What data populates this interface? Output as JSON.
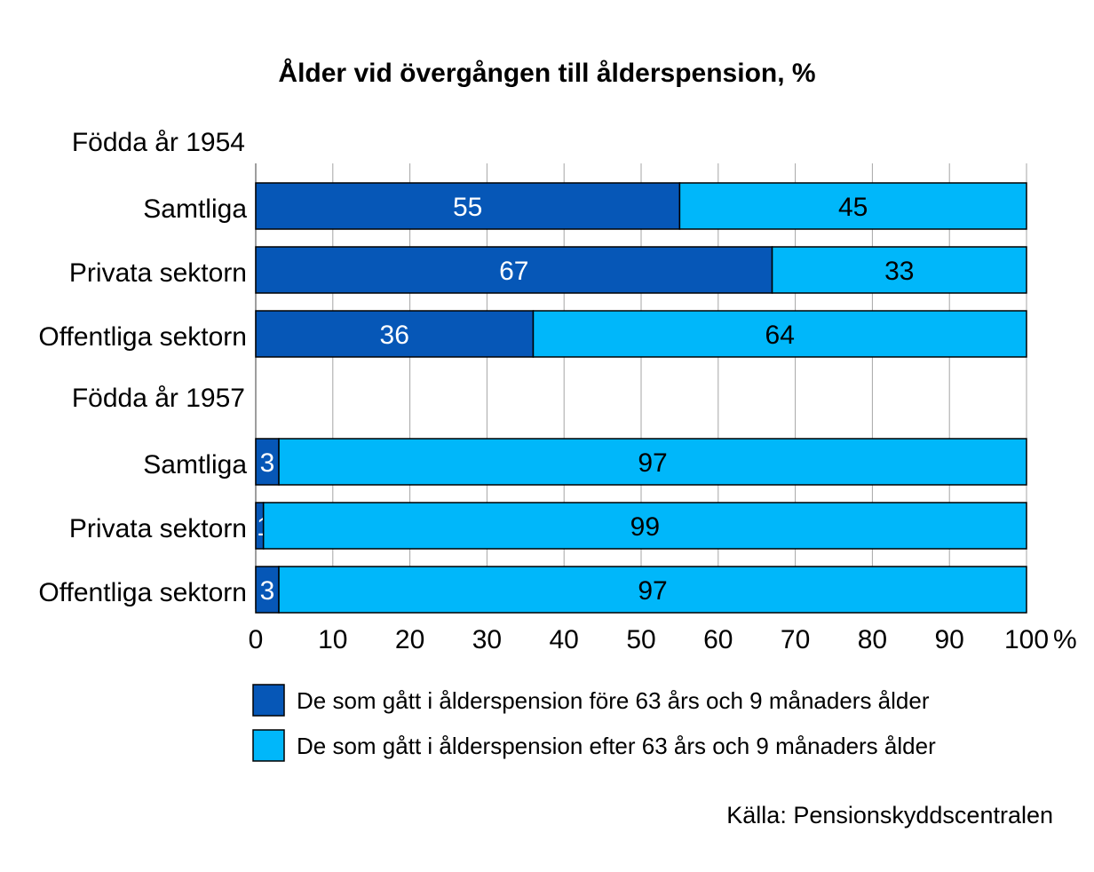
{
  "chart_data": {
    "type": "bar",
    "orientation": "horizontal",
    "stacked": true,
    "title": "Ålder vid övergången till ålderspension,  %",
    "xlim": [
      0,
      100
    ],
    "x_ticks": [
      "0",
      "10",
      "20",
      "30",
      "40",
      "50",
      "60",
      "70",
      "80",
      "90",
      "100"
    ],
    "x_unit": "%",
    "grid": true,
    "groups": [
      {
        "heading": "Födda år 1954",
        "categories": [
          "Samtliga",
          "Privata sektorn",
          "Offentliga sektorn"
        ]
      },
      {
        "heading": "Födda år 1957",
        "categories": [
          "Samtliga",
          "Privata sektorn",
          "Offentliga sektorn"
        ]
      }
    ],
    "series": [
      {
        "name": "De som gått i ålderspension före 63 års och 9 månaders ålder",
        "color": "#0657B7",
        "label_color": "#ffffff",
        "values": [
          55,
          67,
          36,
          3,
          1,
          3
        ]
      },
      {
        "name": "De som gått i ålderspension efter 63 års och 9 månaders ålder",
        "color": "#00B7FA",
        "label_color": "#000000",
        "values": [
          45,
          33,
          64,
          97,
          99,
          97
        ]
      }
    ],
    "legend_position": "bottom",
    "source": "Källa: Pensionskyddscentralen"
  }
}
